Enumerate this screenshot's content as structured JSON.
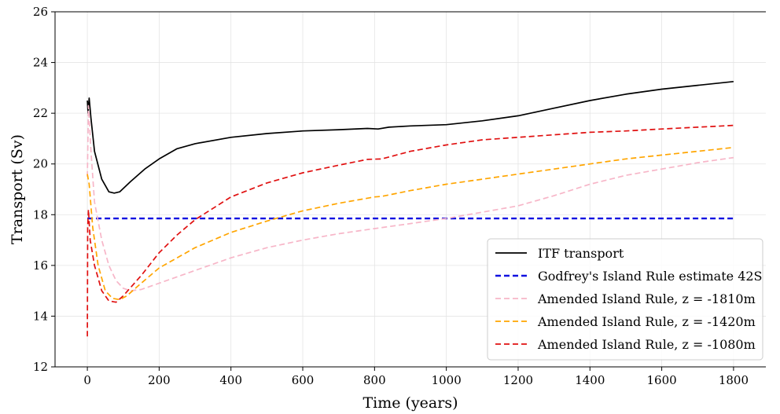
{
  "chart_data": {
    "type": "line",
    "title": "",
    "xlabel": "Time (years)",
    "ylabel": "Transport (Sv)",
    "xlim": [
      -90,
      1890
    ],
    "ylim": [
      12,
      26
    ],
    "xticks": [
      0,
      200,
      400,
      600,
      800,
      1000,
      1200,
      1400,
      1600,
      1800
    ],
    "yticks": [
      12,
      14,
      16,
      18,
      20,
      22,
      24,
      26
    ],
    "grid": true,
    "legend_position": "lower-right",
    "series": [
      {
        "name": "ITF transport",
        "color": "#000000",
        "style": "solid",
        "points": [
          [
            0,
            22.5
          ],
          [
            2,
            22.0
          ],
          [
            5,
            22.6
          ],
          [
            10,
            21.8
          ],
          [
            20,
            20.5
          ],
          [
            40,
            19.4
          ],
          [
            60,
            18.9
          ],
          [
            75,
            18.85
          ],
          [
            90,
            18.9
          ],
          [
            120,
            19.3
          ],
          [
            160,
            19.8
          ],
          [
            200,
            20.2
          ],
          [
            250,
            20.6
          ],
          [
            300,
            20.8
          ],
          [
            400,
            21.05
          ],
          [
            500,
            21.2
          ],
          [
            600,
            21.3
          ],
          [
            700,
            21.35
          ],
          [
            780,
            21.4
          ],
          [
            810,
            21.38
          ],
          [
            840,
            21.45
          ],
          [
            900,
            21.5
          ],
          [
            1000,
            21.55
          ],
          [
            1100,
            21.7
          ],
          [
            1200,
            21.9
          ],
          [
            1300,
            22.2
          ],
          [
            1400,
            22.5
          ],
          [
            1500,
            22.75
          ],
          [
            1600,
            22.95
          ],
          [
            1700,
            23.1
          ],
          [
            1800,
            23.25
          ]
        ]
      },
      {
        "name": "Godfrey's Island Rule estimate 42S",
        "color": "#1010e0",
        "style": "dashed",
        "points": [
          [
            0,
            17.85
          ],
          [
            1800,
            17.85
          ]
        ]
      },
      {
        "name": "Amended Island Rule, z = -1810m",
        "color": "#f7b6c8",
        "style": "dashed",
        "points": [
          [
            0,
            19.5
          ],
          [
            3,
            22.3
          ],
          [
            10,
            20.5
          ],
          [
            20,
            18.5
          ],
          [
            40,
            17.0
          ],
          [
            60,
            16.0
          ],
          [
            80,
            15.4
          ],
          [
            100,
            15.1
          ],
          [
            120,
            15.0
          ],
          [
            150,
            15.05
          ],
          [
            200,
            15.3
          ],
          [
            300,
            15.8
          ],
          [
            400,
            16.3
          ],
          [
            500,
            16.7
          ],
          [
            600,
            17.0
          ],
          [
            700,
            17.25
          ],
          [
            800,
            17.45
          ],
          [
            900,
            17.65
          ],
          [
            1000,
            17.85
          ],
          [
            1100,
            18.1
          ],
          [
            1200,
            18.35
          ],
          [
            1300,
            18.75
          ],
          [
            1400,
            19.2
          ],
          [
            1500,
            19.55
          ],
          [
            1600,
            19.8
          ],
          [
            1700,
            20.05
          ],
          [
            1800,
            20.25
          ]
        ]
      },
      {
        "name": "Amended Island Rule, z = -1420m",
        "color": "#ffa500",
        "style": "dashed",
        "points": [
          [
            0,
            19.6
          ],
          [
            5,
            19.2
          ],
          [
            15,
            17.5
          ],
          [
            30,
            16.0
          ],
          [
            50,
            15.0
          ],
          [
            70,
            14.7
          ],
          [
            90,
            14.65
          ],
          [
            110,
            14.8
          ],
          [
            150,
            15.3
          ],
          [
            200,
            15.9
          ],
          [
            300,
            16.7
          ],
          [
            400,
            17.3
          ],
          [
            500,
            17.75
          ],
          [
            600,
            18.15
          ],
          [
            700,
            18.45
          ],
          [
            800,
            18.7
          ],
          [
            820,
            18.72
          ],
          [
            900,
            18.95
          ],
          [
            1000,
            19.2
          ],
          [
            1100,
            19.4
          ],
          [
            1200,
            19.6
          ],
          [
            1300,
            19.8
          ],
          [
            1400,
            20.0
          ],
          [
            1500,
            20.2
          ],
          [
            1600,
            20.35
          ],
          [
            1700,
            20.5
          ],
          [
            1800,
            20.65
          ]
        ]
      },
      {
        "name": "Amended Island Rule, z = -1080m",
        "color": "#e01010",
        "style": "dashed",
        "points": [
          [
            0,
            13.2
          ],
          [
            1,
            17.5
          ],
          [
            3,
            18.2
          ],
          [
            8,
            17.0
          ],
          [
            20,
            16.0
          ],
          [
            40,
            15.0
          ],
          [
            60,
            14.6
          ],
          [
            80,
            14.55
          ],
          [
            100,
            14.8
          ],
          [
            150,
            15.6
          ],
          [
            200,
            16.5
          ],
          [
            250,
            17.2
          ],
          [
            300,
            17.8
          ],
          [
            400,
            18.7
          ],
          [
            500,
            19.25
          ],
          [
            600,
            19.65
          ],
          [
            700,
            19.95
          ],
          [
            780,
            20.18
          ],
          [
            820,
            20.2
          ],
          [
            900,
            20.5
          ],
          [
            1000,
            20.75
          ],
          [
            1100,
            20.95
          ],
          [
            1200,
            21.05
          ],
          [
            1300,
            21.15
          ],
          [
            1400,
            21.25
          ],
          [
            1500,
            21.3
          ],
          [
            1600,
            21.38
          ],
          [
            1700,
            21.45
          ],
          [
            1800,
            21.52
          ]
        ]
      }
    ]
  }
}
